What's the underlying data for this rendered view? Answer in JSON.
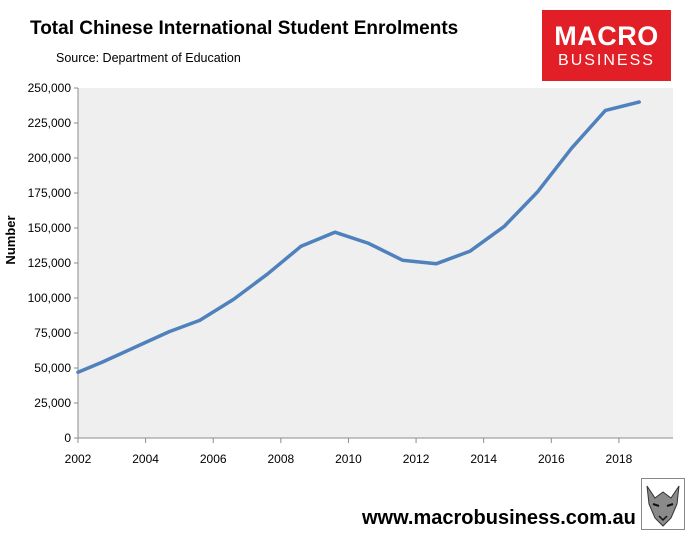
{
  "header": {
    "title": "Total Chinese International Student Enrolments",
    "subtitle": "Source: Department of Education"
  },
  "logo": {
    "line1": "MACRO",
    "line2": "BUSINESS",
    "color": "#e21f26",
    "icon": "wolf-emblem-icon"
  },
  "footer": {
    "url": "www.macrobusiness.com.au"
  },
  "colors": {
    "plot_background": "#efefef",
    "line": "#4f81bd"
  },
  "chart_data": {
    "type": "line",
    "title": "Total Chinese International Student Enrolments",
    "xlabel": "",
    "ylabel": "Number",
    "xlim": [
      2002,
      2019.6
    ],
    "ylim": [
      0,
      250000
    ],
    "x_ticks": [
      2002,
      2004,
      2006,
      2008,
      2010,
      2012,
      2014,
      2016,
      2018
    ],
    "x_tick_labels": [
      "2002",
      "2004",
      "2006",
      "2008",
      "2010",
      "2012",
      "2014",
      "2016",
      "2018"
    ],
    "y_ticks": [
      0,
      25000,
      50000,
      75000,
      100000,
      125000,
      150000,
      175000,
      200000,
      225000,
      250000
    ],
    "y_tick_labels": [
      "0",
      "25,000",
      "50,000",
      "75,000",
      "100,000",
      "125,000",
      "150,000",
      "175,000",
      "200,000",
      "225,000",
      "250,000"
    ],
    "grid": false,
    "legend": "none",
    "series": [
      {
        "x": [
          2002,
          2002.7,
          2003.7,
          2004.7,
          2005.6,
          2006.6,
          2007.6,
          2008.6,
          2009.6,
          2010.6,
          2011.6,
          2012.6,
          2013.6,
          2014.6,
          2015.6,
          2016.6,
          2017.6,
          2018.6
        ],
        "values": [
          47000,
          54000,
          65000,
          76000,
          84000,
          99000,
          117000,
          137000,
          147000,
          139000,
          127000,
          124500,
          133500,
          151000,
          176000,
          207000,
          234000,
          240000
        ]
      }
    ]
  }
}
